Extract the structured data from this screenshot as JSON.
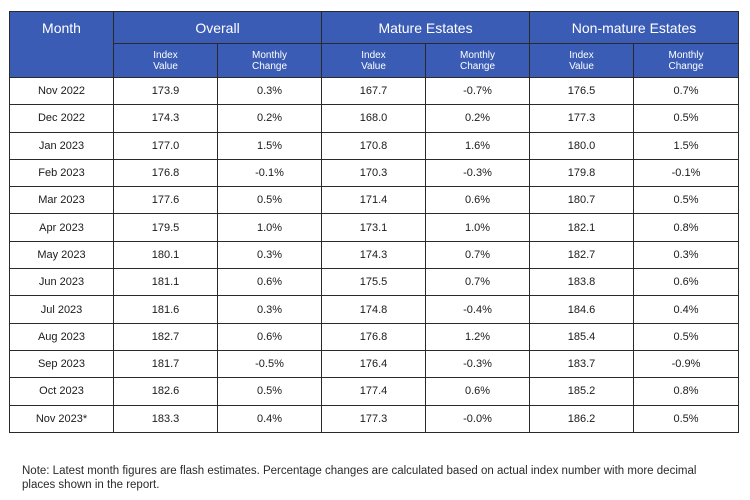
{
  "table": {
    "month_header": "Month",
    "groups": [
      "Overall",
      "Mature Estates",
      "Non-mature Estates"
    ],
    "sub_index": "Index\nValue",
    "sub_change": "Monthly\nChange",
    "rows": [
      [
        "Nov 2022",
        "173.9",
        "0.3%",
        "167.7",
        "-0.7%",
        "176.5",
        "0.7%"
      ],
      [
        "Dec 2022",
        "174.3",
        "0.2%",
        "168.0",
        "0.2%",
        "177.3",
        "0.5%"
      ],
      [
        "Jan 2023",
        "177.0",
        "1.5%",
        "170.8",
        "1.6%",
        "180.0",
        "1.5%"
      ],
      [
        "Feb 2023",
        "176.8",
        "-0.1%",
        "170.3",
        "-0.3%",
        "179.8",
        "-0.1%"
      ],
      [
        "Mar 2023",
        "177.6",
        "0.5%",
        "171.4",
        "0.6%",
        "180.7",
        "0.5%"
      ],
      [
        "Apr 2023",
        "179.5",
        "1.0%",
        "173.1",
        "1.0%",
        "182.1",
        "0.8%"
      ],
      [
        "May 2023",
        "180.1",
        "0.3%",
        "174.3",
        "0.7%",
        "182.7",
        "0.3%"
      ],
      [
        "Jun 2023",
        "181.1",
        "0.6%",
        "175.5",
        "0.7%",
        "183.8",
        "0.6%"
      ],
      [
        "Jul 2023",
        "181.6",
        "0.3%",
        "174.8",
        "-0.4%",
        "184.6",
        "0.4%"
      ],
      [
        "Aug 2023",
        "182.7",
        "0.6%",
        "176.8",
        "1.2%",
        "185.4",
        "0.5%"
      ],
      [
        "Sep 2023",
        "181.7",
        "-0.5%",
        "176.4",
        "-0.3%",
        "183.7",
        "-0.9%"
      ],
      [
        "Oct 2023",
        "182.6",
        "0.5%",
        "177.4",
        "0.6%",
        "185.2",
        "0.8%"
      ],
      [
        "Nov 2023*",
        "183.3",
        "0.4%",
        "177.3",
        "-0.0%",
        "186.2",
        "0.5%"
      ]
    ]
  },
  "note": "Note: Latest month figures are flash estimates. Percentage changes are calculated based on actual index number with more decimal places shown in the report.",
  "colors": {
    "header_bg": "#3a5cb5",
    "header_text": "#ffffff"
  }
}
